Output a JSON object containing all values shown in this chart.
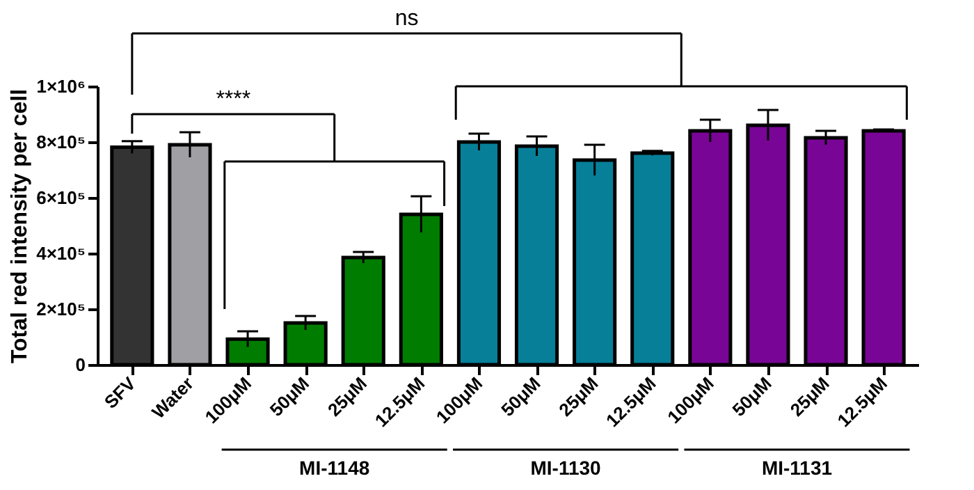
{
  "chart_data": {
    "type": "bar",
    "ylabel": "Total red intensity per cell",
    "categories": [
      "SFV",
      "Water",
      "100μM",
      "50μM",
      "25μM",
      "12.5μM",
      "100μM",
      "50μM",
      "25μM",
      "12.5μM",
      "100μM",
      "50μM",
      "25μM",
      "12.5μM"
    ],
    "values": [
      781000,
      790000,
      92000,
      150000,
      385000,
      540000,
      800000,
      785000,
      735000,
      760000,
      840000,
      860000,
      815000,
      840000
    ],
    "errors": [
      22000,
      45000,
      28000,
      25000,
      20000,
      65000,
      30000,
      35000,
      55000,
      8000,
      40000,
      55000,
      25000,
      5000
    ],
    "colors": [
      "#333333",
      "#a0a0a4",
      "#007d00",
      "#007d00",
      "#007d00",
      "#007d00",
      "#077f98",
      "#077f98",
      "#077f98",
      "#077f98",
      "#790596",
      "#790596",
      "#790596",
      "#790596"
    ],
    "ylim": [
      0,
      1000000
    ],
    "yticks": [
      0,
      {
        "value": 200000,
        "label": "2×10⁵"
      },
      {
        "value": 400000,
        "label": "4×10⁵"
      },
      {
        "value": 600000,
        "label": "6×10⁵"
      },
      {
        "value": 800000,
        "label": "8×10⁵"
      },
      {
        "value": 1000000,
        "label": "1×10⁶"
      }
    ],
    "annotations": [
      "MI-1148",
      "MI-1130",
      "MI-1131",
      "****",
      "ns"
    ],
    "grid": false
  }
}
